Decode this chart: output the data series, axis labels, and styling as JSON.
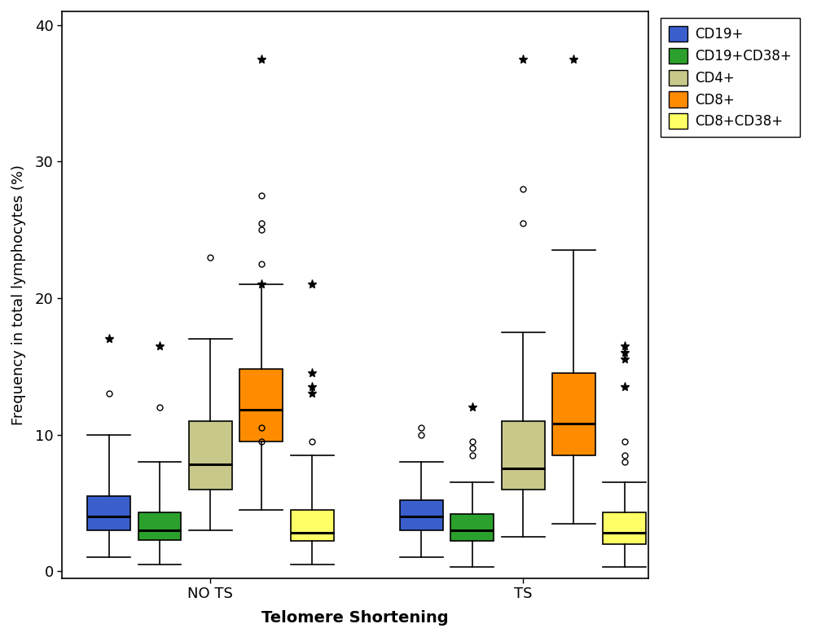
{
  "title": "",
  "xlabel": "Telomere Shortening",
  "ylabel": "Frequency in total lymphocytes (%)",
  "ylim": [
    -0.5,
    41
  ],
  "yticks": [
    0,
    10,
    20,
    30,
    40
  ],
  "groups": [
    "NO TS",
    "TS"
  ],
  "series_labels": [
    "CD19+",
    "CD19+CD38+",
    "CD4+",
    "CD8+",
    "CD8+CD38+"
  ],
  "colors": [
    "#3a5fcd",
    "#2ca02c",
    "#c8c88a",
    "#ff8c00",
    "#ffff66"
  ],
  "box_width": 0.55,
  "group_centers": [
    2.2,
    6.2
  ],
  "offsets": [
    -1.3,
    -0.65,
    0.0,
    0.65,
    1.3
  ],
  "NO_TS": {
    "CD19+": {
      "q1": 3.0,
      "median": 4.0,
      "q3": 5.5,
      "whislo": 1.0,
      "whishi": 10.0,
      "fliers_circle": [
        13.0
      ],
      "fliers_star": [
        17.0
      ]
    },
    "CD19+CD38+": {
      "q1": 2.3,
      "median": 3.0,
      "q3": 4.3,
      "whislo": 0.5,
      "whishi": 8.0,
      "fliers_circle": [
        12.0
      ],
      "fliers_star": [
        16.5
      ]
    },
    "CD4+": {
      "q1": 6.0,
      "median": 7.8,
      "q3": 11.0,
      "whislo": 3.0,
      "whishi": 17.0,
      "fliers_circle": [
        23.0
      ],
      "fliers_star": []
    },
    "CD8+": {
      "q1": 9.5,
      "median": 11.8,
      "q3": 14.8,
      "whislo": 4.5,
      "whishi": 21.0,
      "fliers_circle": [
        22.5,
        25.0,
        25.5,
        27.5,
        9.5,
        10.5
      ],
      "fliers_star": [
        37.5,
        21.0
      ]
    },
    "CD8+CD38+": {
      "q1": 2.2,
      "median": 2.8,
      "q3": 4.5,
      "whislo": 0.5,
      "whishi": 8.5,
      "fliers_circle": [
        9.5
      ],
      "fliers_star": [
        14.5,
        13.5,
        13.0,
        21.0
      ]
    }
  },
  "TS": {
    "CD19+": {
      "q1": 3.0,
      "median": 4.0,
      "q3": 5.2,
      "whislo": 1.0,
      "whishi": 8.0,
      "fliers_circle": [
        10.0,
        10.5
      ],
      "fliers_star": []
    },
    "CD19+CD38+": {
      "q1": 2.2,
      "median": 3.0,
      "q3": 4.2,
      "whislo": 0.3,
      "whishi": 6.5,
      "fliers_circle": [
        9.5,
        9.0,
        8.5
      ],
      "fliers_star": [
        12.0
      ]
    },
    "CD4+": {
      "q1": 6.0,
      "median": 7.5,
      "q3": 11.0,
      "whislo": 2.5,
      "whishi": 17.5,
      "fliers_circle": [
        25.5,
        28.0
      ],
      "fliers_star": [
        37.5
      ]
    },
    "CD8+": {
      "q1": 8.5,
      "median": 10.8,
      "q3": 14.5,
      "whislo": 3.5,
      "whishi": 23.5,
      "fliers_circle": [],
      "fliers_star": [
        37.5
      ]
    },
    "CD8+CD38+": {
      "q1": 2.0,
      "median": 2.8,
      "q3": 4.3,
      "whislo": 0.3,
      "whishi": 6.5,
      "fliers_circle": [
        8.0,
        8.5,
        9.5
      ],
      "fliers_star": [
        15.5,
        16.0,
        16.5,
        13.5
      ]
    }
  },
  "background_color": "#ffffff"
}
